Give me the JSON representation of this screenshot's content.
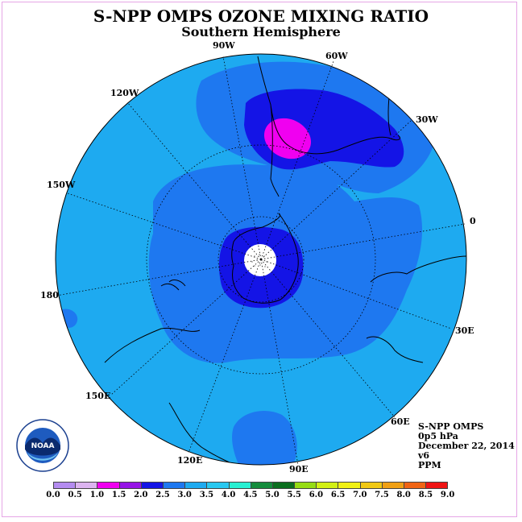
{
  "title": "S-NPP OMPS OZONE MIXING RATIO",
  "subtitle": "Southern Hemisphere",
  "longitude_labels": {
    "lon_90w": "90W",
    "lon_60w": "60W",
    "lon_120w": "120W",
    "lon_30w": "30W",
    "lon_150w": "150W",
    "lon_0": "0",
    "lon_180": "180",
    "lon_30e": "30E",
    "lon_150e": "150E",
    "lon_60e": "60E",
    "lon_120e": "120E",
    "lon_90e": "90E"
  },
  "info": {
    "instrument": "S-NPP OMPS",
    "level": "0p5 hPa",
    "date": "December 22, 2014",
    "version": "v6",
    "units": "PPM"
  },
  "logo": {
    "text": "NOAA",
    "icon": "noaa-logo"
  },
  "colorbar": {
    "ticks": [
      "0.0",
      "0.5",
      "1.0",
      "1.5",
      "2.0",
      "2.5",
      "3.0",
      "3.5",
      "4.0",
      "4.5",
      "5.0",
      "5.5",
      "6.0",
      "6.5",
      "7.0",
      "7.5",
      "8.0",
      "8.5",
      "9.0"
    ],
    "colors": [
      "#b48cf0",
      "#dcb4f0",
      "#f000f0",
      "#9614e6",
      "#1414e6",
      "#1e78f0",
      "#1eaaf0",
      "#28c8f0",
      "#28f0d2",
      "#148c3c",
      "#0a6e1e",
      "#96dc14",
      "#d2f014",
      "#f0f014",
      "#f0c814",
      "#f0a014",
      "#f06414",
      "#f01414",
      "#8c5032"
    ]
  },
  "map": {
    "projection": "polar stereographic, south pole",
    "regions": [
      {
        "name": "background",
        "range_ppm": "2.5-3.0",
        "color": "#1eaaf0"
      },
      {
        "name": "mid-latitude ring",
        "range_ppm": "2.0-2.5",
        "color": "#1e78f0"
      },
      {
        "name": "polar core",
        "range_ppm": "1.5-2.0",
        "color": "#1414e6"
      },
      {
        "name": "south america max",
        "range_ppm": "1.5-2.0",
        "color": "#1414e6"
      },
      {
        "name": "south america peak",
        "range_ppm": "1.0-1.5",
        "color": "#f000f0"
      }
    ]
  }
}
